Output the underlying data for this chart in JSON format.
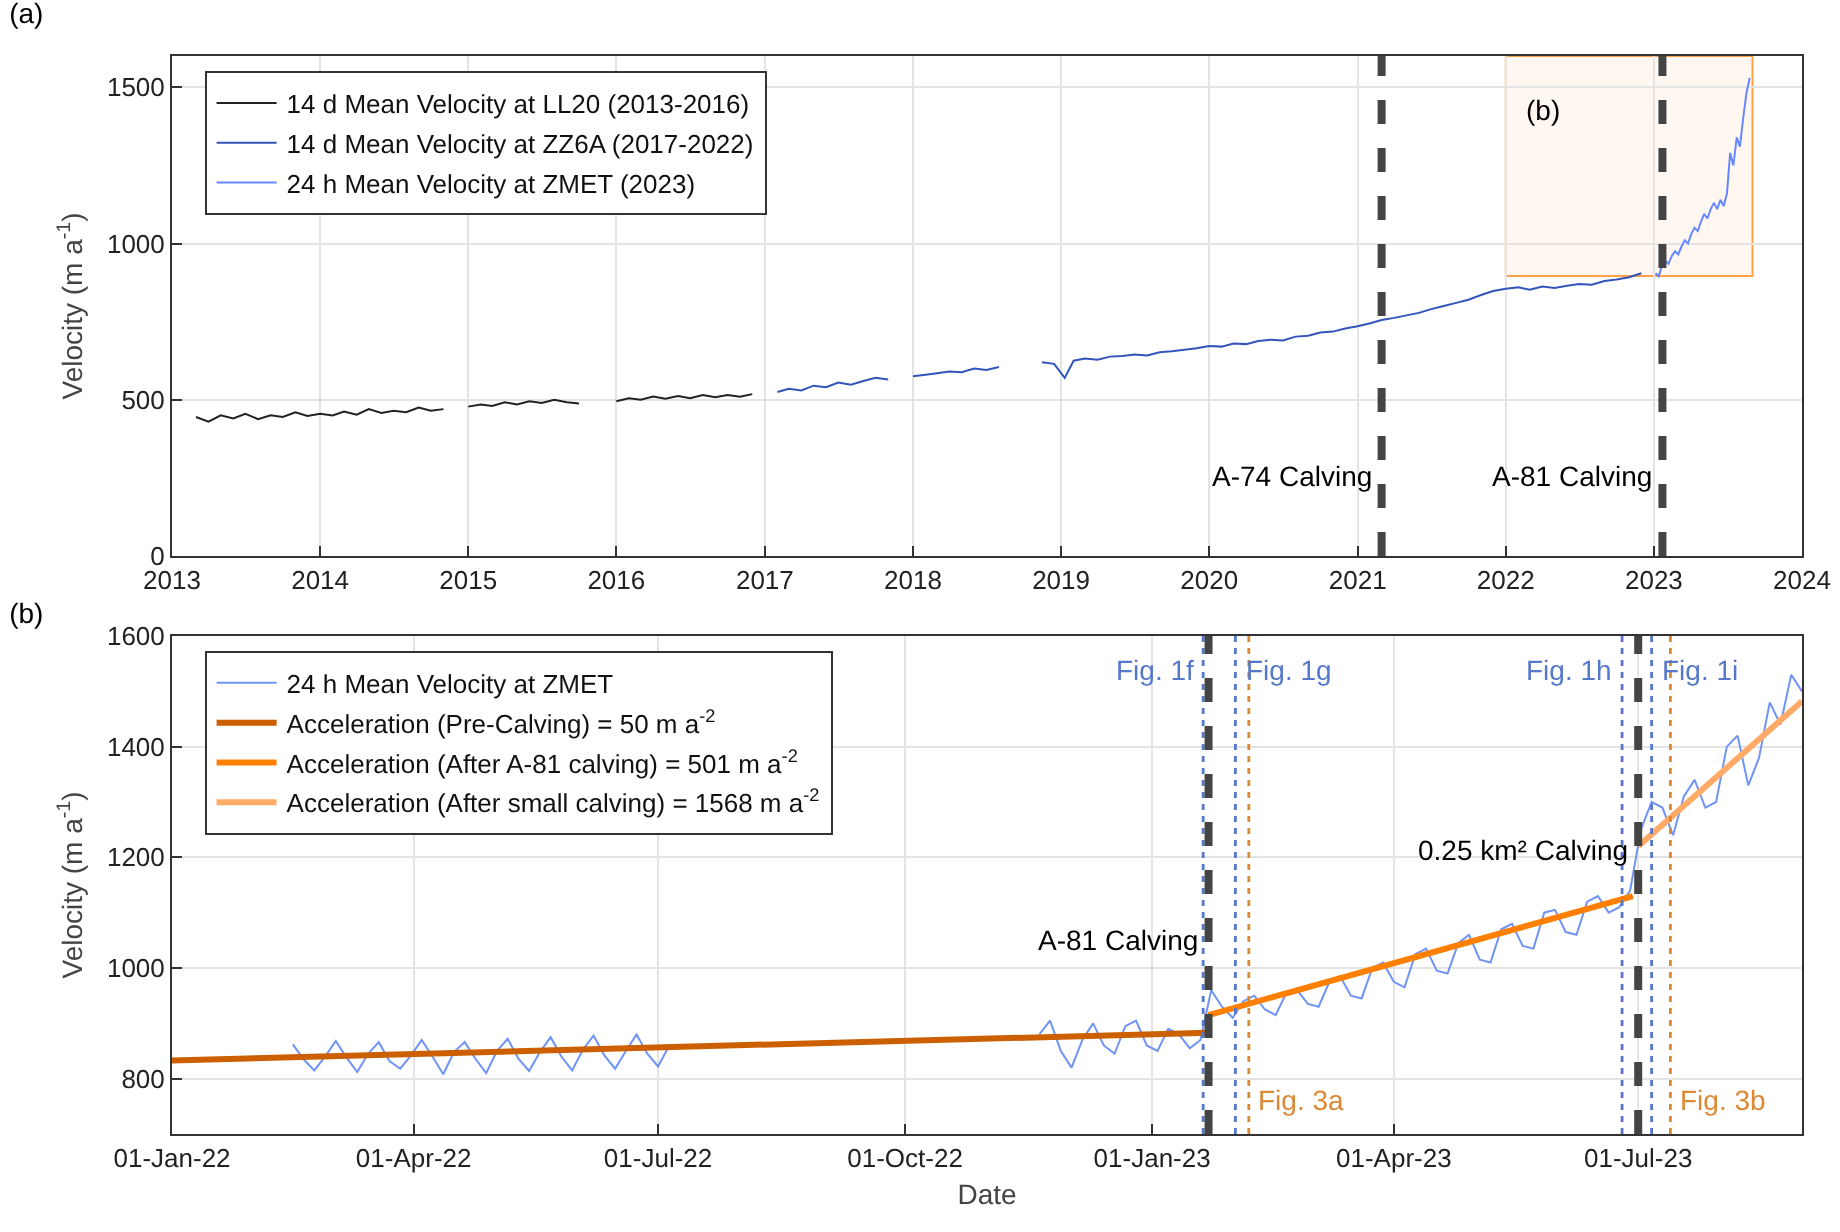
{
  "chart_data": [
    {
      "type": "line",
      "title": "(a)",
      "ylabel": "Velocity (m a$^{-1}$)",
      "xlim": [
        "2013-01-01",
        "2024-01-01"
      ],
      "ylim": [
        0,
        1600
      ],
      "xticks": [
        {
          "value": "2013-01-01",
          "label": "2013"
        },
        {
          "value": "2014-01-01",
          "label": "2014"
        },
        {
          "value": "2015-01-01",
          "label": "2015"
        },
        {
          "value": "2016-01-01",
          "label": "2016"
        },
        {
          "value": "2017-01-01",
          "label": "2017"
        },
        {
          "value": "2018-01-01",
          "label": "2018"
        },
        {
          "value": "2019-01-01",
          "label": "2019"
        },
        {
          "value": "2020-01-01",
          "label": "2020"
        },
        {
          "value": "2021-01-01",
          "label": "2021"
        },
        {
          "value": "2022-01-01",
          "label": "2022"
        },
        {
          "value": "2023-01-01",
          "label": "2023"
        },
        {
          "value": "2024-01-01",
          "label": "2024"
        }
      ],
      "yticks": [
        0,
        500,
        1000,
        1500
      ],
      "grid": true,
      "legend": "top left",
      "series": [
        {
          "name": "14 d Mean Velocity at LL20 (2013-2016)",
          "color": "#222222",
          "x": [
            "2013-03-01",
            "2013-04-01",
            "2013-05-01",
            "2013-06-01",
            "2013-07-01",
            "2013-08-01",
            "2013-09-01",
            "2013-10-01",
            "2013-11-01",
            "2013-12-01",
            "2014-01-01",
            "2014-02-01",
            "2014-03-01",
            "2014-04-01",
            "2014-05-01",
            "2014-06-01",
            "2014-07-01",
            "2014-08-01",
            "2014-09-01",
            "2014-10-01",
            "2014-11-01",
            "2014-12-01",
            "2015-01-01",
            "2015-02-01",
            "2015-03-01",
            "2015-04-01",
            "2015-05-01",
            "2015-06-01",
            "2015-07-01",
            "2015-08-01",
            "2015-09-01",
            "2015-10-01",
            "2015-11-15",
            "2016-01-01",
            "2016-02-01",
            "2016-03-01",
            "2016-04-01",
            "2016-05-01",
            "2016-06-01",
            "2016-07-01",
            "2016-08-01",
            "2016-09-01",
            "2016-10-01",
            "2016-11-01",
            "2016-12-01"
          ],
          "values": [
            445,
            430,
            450,
            440,
            455,
            438,
            450,
            445,
            460,
            448,
            455,
            450,
            462,
            452,
            470,
            458,
            465,
            460,
            475,
            465,
            470,
            null,
            478,
            485,
            480,
            492,
            485,
            495,
            490,
            500,
            492,
            488,
            null,
            495,
            505,
            500,
            510,
            503,
            512,
            505,
            515,
            508,
            515,
            510,
            518
          ]
        },
        {
          "name": "14 d Mean Velocity at ZZ6A (2017-2022)",
          "color": "#3355bb",
          "x": [
            "2017-02-01",
            "2017-03-01",
            "2017-04-01",
            "2017-05-01",
            "2017-06-01",
            "2017-07-01",
            "2017-08-01",
            "2017-09-01",
            "2017-10-01",
            "2017-11-01",
            "2017-12-01",
            "2018-01-01",
            "2018-02-01",
            "2018-03-01",
            "2018-04-01",
            "2018-05-01",
            "2018-06-01",
            "2018-07-01",
            "2018-08-01",
            "2018-09-15",
            "2018-11-15",
            "2018-12-15",
            "2019-01-10",
            "2019-02-01",
            "2019-03-01",
            "2019-04-01",
            "2019-05-01",
            "2019-06-01",
            "2019-07-01",
            "2019-08-01",
            "2019-09-01",
            "2019-10-01",
            "2019-11-01",
            "2019-12-01",
            "2020-01-01",
            "2020-02-01",
            "2020-03-01",
            "2020-04-01",
            "2020-05-01",
            "2020-06-01",
            "2020-07-01",
            "2020-08-01",
            "2020-09-01",
            "2020-10-01",
            "2020-11-01",
            "2020-12-01",
            "2021-01-01",
            "2021-02-01",
            "2021-03-01",
            "2021-04-01",
            "2021-05-01",
            "2021-06-01",
            "2021-07-01",
            "2021-08-01",
            "2021-09-01",
            "2021-10-01",
            "2021-11-01",
            "2021-12-01",
            "2022-01-01",
            "2022-02-01",
            "2022-03-01",
            "2022-04-01",
            "2022-05-01",
            "2022-06-01",
            "2022-07-01",
            "2022-08-01",
            "2022-09-01",
            "2022-10-01",
            "2022-11-01",
            "2022-12-01"
          ],
          "values": [
            525,
            535,
            530,
            545,
            540,
            555,
            548,
            560,
            570,
            565,
            null,
            575,
            580,
            585,
            590,
            588,
            600,
            595,
            605,
            null,
            620,
            615,
            570,
            625,
            632,
            628,
            638,
            640,
            645,
            642,
            652,
            655,
            660,
            665,
            672,
            670,
            680,
            678,
            688,
            692,
            690,
            702,
            705,
            715,
            718,
            728,
            735,
            745,
            755,
            762,
            770,
            778,
            790,
            800,
            810,
            820,
            835,
            848,
            855,
            860,
            852,
            862,
            858,
            865,
            870,
            868,
            880,
            885,
            892,
            905
          ]
        },
        {
          "name": "24 h Mean Velocity at ZMET (2023)",
          "color": "#6688ff",
          "x": [
            "2023-01-05",
            "2023-01-13",
            "2023-01-21",
            "2023-01-29",
            "2023-02-06",
            "2023-02-14",
            "2023-02-22",
            "2023-03-02",
            "2023-03-10",
            "2023-03-18",
            "2023-03-26",
            "2023-04-03",
            "2023-04-11",
            "2023-04-19",
            "2023-04-27",
            "2023-05-05",
            "2023-05-13",
            "2023-05-21",
            "2023-05-29",
            "2023-06-06",
            "2023-06-14",
            "2023-06-22",
            "2023-06-30",
            "2023-07-08",
            "2023-07-16",
            "2023-07-24",
            "2023-08-01",
            "2023-08-09",
            "2023-08-17",
            "2023-08-25"
          ],
          "values": [
            905,
            895,
            930,
            945,
            935,
            960,
            975,
            965,
            990,
            1010,
            1000,
            1030,
            1050,
            1040,
            1070,
            1095,
            1080,
            1110,
            1130,
            1110,
            1140,
            1120,
            1160,
            1290,
            1250,
            1340,
            1310,
            1400,
            1480,
            1530
          ]
        }
      ],
      "ref_lines": [
        {
          "axis": "x",
          "value": "2021-03-01",
          "label": "A-74 Calving",
          "color": "#444444",
          "line_style": "dashed"
        },
        {
          "axis": "x",
          "value": "2023-01-22",
          "label": "A-81 Calving",
          "color": "#444444",
          "line_style": "dashed"
        }
      ],
      "bands": [
        {
          "axis": "x",
          "from": "2022-01-01",
          "to": "2023-09-01",
          "label": "(b)",
          "color": "#ff9933"
        }
      ]
    },
    {
      "type": "line",
      "title": "(b)",
      "xlabel": "Date",
      "ylabel": "Velocity (m a$^{-1}$)",
      "xlim": [
        "2022-01-01",
        "2023-08-31"
      ],
      "ylim": [
        700,
        1600
      ],
      "xticks": [
        {
          "value": "2022-01-01",
          "label": "01-Jan-22"
        },
        {
          "value": "2022-04-01",
          "label": "01-Apr-22"
        },
        {
          "value": "2022-07-01",
          "label": "01-Jul-22"
        },
        {
          "value": "2022-10-01",
          "label": "01-Oct-22"
        },
        {
          "value": "2023-01-01",
          "label": "01-Jan-23"
        },
        {
          "value": "2023-04-01",
          "label": "01-Apr-23"
        },
        {
          "value": "2023-07-01",
          "label": "01-Jul-23"
        }
      ],
      "yticks": [
        800,
        1000,
        1200,
        1400,
        1600
      ],
      "grid": true,
      "legend": "top left",
      "series": [
        {
          "name": "24 h Mean Velocity at ZMET",
          "color": "#6f94f5",
          "x": [
            "2022-02-15",
            "2022-02-19",
            "2022-02-23",
            "2022-02-27",
            "2022-03-03",
            "2022-03-07",
            "2022-03-11",
            "2022-03-15",
            "2022-03-19",
            "2022-03-23",
            "2022-03-27",
            "2022-03-31",
            "2022-04-04",
            "2022-04-08",
            "2022-04-12",
            "2022-04-16",
            "2022-04-20",
            "2022-04-24",
            "2022-04-28",
            "2022-05-02",
            "2022-05-06",
            "2022-05-10",
            "2022-05-14",
            "2022-05-18",
            "2022-05-22",
            "2022-05-26",
            "2022-05-30",
            "2022-06-03",
            "2022-06-07",
            "2022-06-11",
            "2022-06-15",
            "2022-06-19",
            "2022-06-23",
            "2022-06-27",
            "2022-07-01",
            "2022-07-05",
            "2022-09-01",
            "2022-11-20",
            "2022-11-24",
            "2022-11-28",
            "2022-12-02",
            "2022-12-06",
            "2022-12-10",
            "2022-12-14",
            "2022-12-18",
            "2022-12-22",
            "2022-12-26",
            "2022-12-30",
            "2023-01-03",
            "2023-01-07",
            "2023-01-11",
            "2023-01-15",
            "2023-01-19",
            "2023-01-23",
            "2023-01-27",
            "2023-01-31",
            "2023-02-04",
            "2023-02-08",
            "2023-02-12",
            "2023-02-16",
            "2023-02-20",
            "2023-02-24",
            "2023-02-28",
            "2023-03-04",
            "2023-03-08",
            "2023-03-12",
            "2023-03-16",
            "2023-03-20",
            "2023-03-24",
            "2023-03-28",
            "2023-04-01",
            "2023-04-05",
            "2023-04-09",
            "2023-04-13",
            "2023-04-17",
            "2023-04-21",
            "2023-04-25",
            "2023-04-29",
            "2023-05-03",
            "2023-05-07",
            "2023-05-11",
            "2023-05-15",
            "2023-05-19",
            "2023-05-23",
            "2023-05-27",
            "2023-05-31",
            "2023-06-04",
            "2023-06-08",
            "2023-06-12",
            "2023-06-16",
            "2023-06-20",
            "2023-06-24",
            "2023-06-28",
            "2023-07-02",
            "2023-07-06",
            "2023-07-10",
            "2023-07-14",
            "2023-07-18",
            "2023-07-22",
            "2023-07-26",
            "2023-07-30",
            "2023-08-03",
            "2023-08-07",
            "2023-08-11",
            "2023-08-15",
            "2023-08-19",
            "2023-08-23",
            "2023-08-27",
            "2023-08-31"
          ],
          "values": [
            862,
            835,
            815,
            840,
            868,
            838,
            812,
            845,
            866,
            832,
            818,
            842,
            870,
            840,
            808,
            848,
            866,
            836,
            810,
            850,
            872,
            836,
            814,
            848,
            875,
            840,
            815,
            852,
            878,
            842,
            818,
            850,
            880,
            845,
            822,
            858,
            null,
            880,
            905,
            850,
            820,
            870,
            900,
            860,
            845,
            895,
            905,
            860,
            850,
            890,
            880,
            855,
            870,
            960,
            930,
            910,
            940,
            950,
            925,
            915,
            955,
            960,
            935,
            930,
            975,
            985,
            950,
            945,
            1000,
            1010,
            975,
            965,
            1025,
            1035,
            995,
            990,
            1045,
            1060,
            1015,
            1010,
            1070,
            1080,
            1040,
            1035,
            1100,
            1105,
            1065,
            1060,
            1120,
            1130,
            1100,
            1110,
            1140,
            1250,
            1300,
            1290,
            1240,
            1310,
            1340,
            1290,
            1300,
            1400,
            1420,
            1330,
            1380,
            1480,
            1440,
            1530,
            1500
          ]
        },
        {
          "name": "Acceleration (Pre-Calving) = 50 m a$^{-2}$",
          "color": "#cc5f00",
          "x": [
            "2022-01-01",
            "2023-01-22"
          ],
          "values": [
            833,
            883
          ]
        },
        {
          "name": "Acceleration (After A-81 calving) = 501 m a$^{-2}$",
          "color": "#ff8000",
          "x": [
            "2023-01-22",
            "2023-06-29"
          ],
          "values": [
            915,
            1130
          ]
        },
        {
          "name": "Acceleration (After small calving) = 1568 m a$^{-2}$",
          "color": "#ffaa66",
          "x": [
            "2023-07-01",
            "2023-08-31"
          ],
          "values": [
            1220,
            1482
          ]
        }
      ],
      "ref_lines": [
        {
          "axis": "x",
          "value": "2023-01-20",
          "label": "Fig. 1f",
          "color": "#5577cc",
          "line_style": "dotted"
        },
        {
          "axis": "x",
          "value": "2023-01-22",
          "label": "A-81 Calving",
          "color": "#444444",
          "line_style": "dashed"
        },
        {
          "axis": "x",
          "value": "2023-02-01",
          "label": "Fig. 1g",
          "color": "#5577cc",
          "line_style": "dotted"
        },
        {
          "axis": "x",
          "value": "2023-02-06",
          "label": "Fig. 3a",
          "color": "#dd8833",
          "line_style": "dotted"
        },
        {
          "axis": "x",
          "value": "2023-06-25",
          "label": "Fig. 1h",
          "color": "#5577cc",
          "line_style": "dotted"
        },
        {
          "axis": "x",
          "value": "2023-07-01",
          "label": "0.25 km² Calving",
          "color": "#444444",
          "line_style": "dashed"
        },
        {
          "axis": "x",
          "value": "2023-07-06",
          "label": "Fig. 1i",
          "color": "#5577cc",
          "line_style": "dotted"
        },
        {
          "axis": "x",
          "value": "2023-07-13",
          "label": "Fig. 3b",
          "color": "#dd8833",
          "line_style": "dotted"
        }
      ]
    }
  ]
}
